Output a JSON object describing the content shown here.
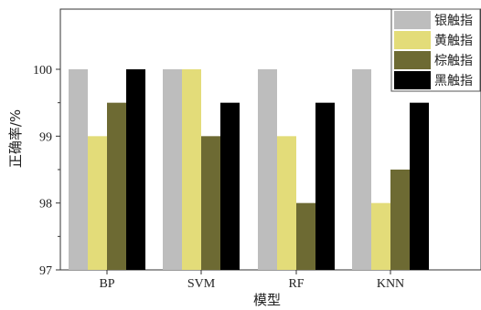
{
  "chart_data": {
    "type": "bar",
    "categories": [
      "BP",
      "SVM",
      "RF",
      "KNN"
    ],
    "series": [
      {
        "name": "银触指",
        "color": "#bdbdbd",
        "values": [
          100,
          100,
          100,
          100
        ]
      },
      {
        "name": "黄触指",
        "color": "#e3dc79",
        "values": [
          99,
          100,
          99,
          98
        ]
      },
      {
        "name": "棕触指",
        "color": "#6d6a33",
        "values": [
          99.5,
          99,
          98,
          98.5
        ]
      },
      {
        "name": "黑触指",
        "color": "#000000",
        "values": [
          100,
          99.5,
          99.5,
          99.5
        ]
      }
    ],
    "title": "",
    "xlabel": "模型",
    "ylabel": "正确率/%",
    "ylim": [
      97,
      100.9
    ],
    "yticks": [
      97,
      98,
      99,
      100
    ],
    "grid": false,
    "legend_position": "top-right"
  }
}
